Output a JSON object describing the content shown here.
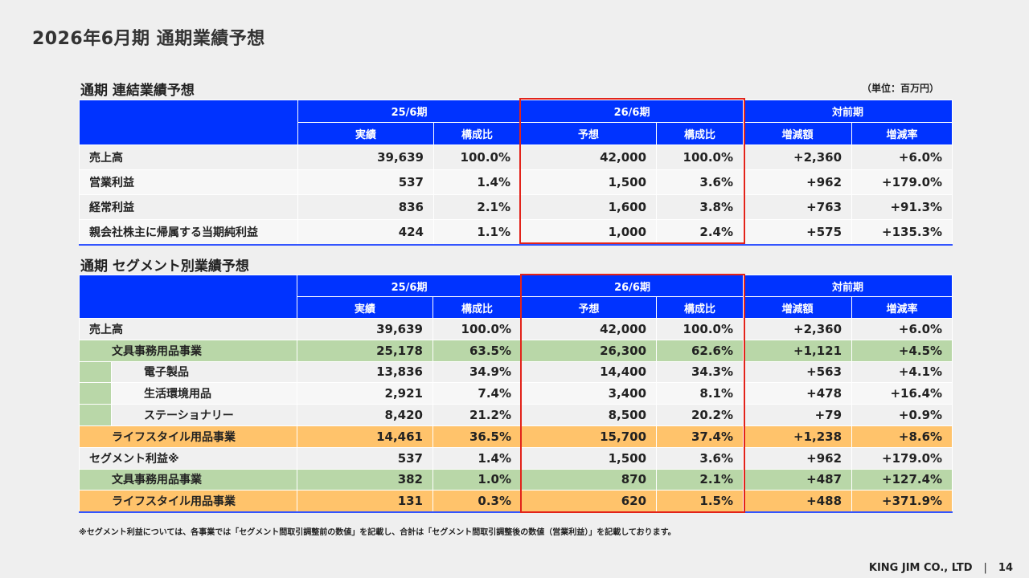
{
  "page_title": "2026年6月期 通期業績予想",
  "unit_label": "（単位：百万円）",
  "section1": {
    "title": "通期 連結業績予想",
    "group_headers": [
      "25/6期",
      "26/6期",
      "対前期"
    ],
    "sub_headers": [
      "実績",
      "構成比",
      "予想",
      "構成比",
      "増減額",
      "増減率"
    ],
    "rows": [
      {
        "label": "売上高",
        "values": [
          "39,639",
          "100.0%",
          "42,000",
          "100.0%",
          "+2,360",
          "+6.0%"
        ]
      },
      {
        "label": "営業利益",
        "values": [
          "537",
          "1.4%",
          "1,500",
          "3.6%",
          "+962",
          "+179.0%"
        ]
      },
      {
        "label": "経常利益",
        "values": [
          "836",
          "2.1%",
          "1,600",
          "3.8%",
          "+763",
          "+91.3%"
        ]
      },
      {
        "label": "親会社株主に帰属する当期純利益",
        "values": [
          "424",
          "1.1%",
          "1,000",
          "2.4%",
          "+575",
          "+135.3%"
        ]
      }
    ]
  },
  "section2": {
    "title": "通期 セグメント別業績予想",
    "group_headers": [
      "25/6期",
      "26/6期",
      "対前期"
    ],
    "sub_headers": [
      "実績",
      "構成比",
      "予想",
      "構成比",
      "増減額",
      "増減率"
    ],
    "rows": [
      {
        "label": "売上高",
        "values": [
          "39,639",
          "100.0%",
          "42,000",
          "100.0%",
          "+2,360",
          "+6.0%"
        ]
      },
      {
        "label": "文具事務用品事業",
        "values": [
          "25,178",
          "63.5%",
          "26,300",
          "62.6%",
          "+1,121",
          "+4.5%"
        ]
      },
      {
        "label": "電子製品",
        "values": [
          "13,836",
          "34.9%",
          "14,400",
          "34.3%",
          "+563",
          "+4.1%"
        ]
      },
      {
        "label": "生活環境用品",
        "values": [
          "2,921",
          "7.4%",
          "3,400",
          "8.1%",
          "+478",
          "+16.4%"
        ]
      },
      {
        "label": "ステーショナリー",
        "values": [
          "8,420",
          "21.2%",
          "8,500",
          "20.2%",
          "+79",
          "+0.9%"
        ]
      },
      {
        "label": "ライフスタイル用品事業",
        "values": [
          "14,461",
          "36.5%",
          "15,700",
          "37.4%",
          "+1,238",
          "+8.6%"
        ]
      },
      {
        "label": "セグメント利益※",
        "values": [
          "537",
          "1.4%",
          "1,500",
          "3.6%",
          "+962",
          "+179.0%"
        ]
      },
      {
        "label": "文具事務用品事業",
        "values": [
          "382",
          "1.0%",
          "870",
          "2.1%",
          "+487",
          "+127.4%"
        ]
      },
      {
        "label": "ライフスタイル用品事業",
        "values": [
          "131",
          "0.3%",
          "620",
          "1.5%",
          "+488",
          "+371.9%"
        ]
      }
    ]
  },
  "footnote": "※セグメント利益については、各事業では「セグメント間取引調整前の数値」を記載し、合計は「セグメント間取引調整後の数値（営業利益）」を記載しております。",
  "footer": {
    "company": "KING JIM CO., LTD",
    "separator": "|",
    "page_number": "14"
  },
  "colors": {
    "header_blue": "#0033ff",
    "highlight_red": "#e2231a",
    "segment_green": "#b9d7a8",
    "segment_orange": "#ffc36b"
  }
}
